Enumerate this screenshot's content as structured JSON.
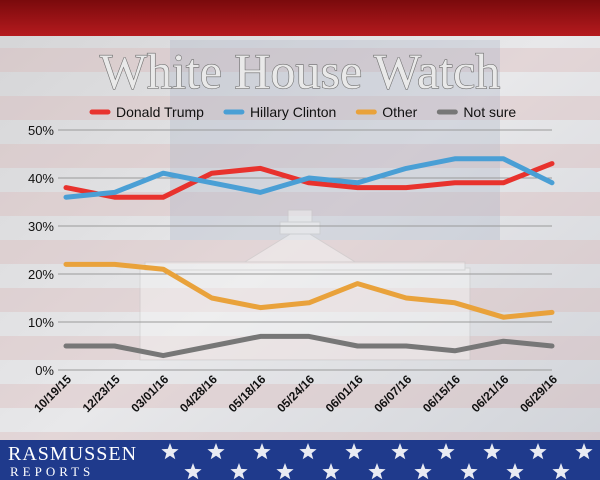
{
  "chart_data": {
    "type": "line",
    "title": "White House Watch",
    "categories": [
      "10/19/15",
      "12/23/15",
      "03/01/16",
      "04/28/16",
      "05/18/16",
      "05/24/16",
      "06/01/16",
      "06/07/16",
      "06/15/16",
      "06/21/16",
      "06/29/16"
    ],
    "yticks": [
      "0%",
      "10%",
      "20%",
      "30%",
      "40%",
      "50%"
    ],
    "ylim": [
      0,
      50
    ],
    "grid": true,
    "legend_position": "top",
    "series": [
      {
        "name": "Donald Trump",
        "color": "#e8322d",
        "values": [
          38,
          36,
          36,
          41,
          42,
          39,
          38,
          38,
          39,
          39,
          43
        ]
      },
      {
        "name": "Hillary Clinton",
        "color": "#4a9fd5",
        "values": [
          36,
          37,
          41,
          39,
          37,
          40,
          39,
          42,
          44,
          44,
          39
        ]
      },
      {
        "name": "Other",
        "color": "#e9a23b",
        "values": [
          22,
          22,
          21,
          15,
          13,
          14,
          18,
          15,
          14,
          11,
          12
        ]
      },
      {
        "name": "Not sure",
        "color": "#777777",
        "values": [
          5,
          5,
          3,
          5,
          7,
          7,
          5,
          5,
          4,
          6,
          5
        ]
      }
    ]
  },
  "brand": {
    "name": "RASMUSSEN",
    "sub": "REPORTS"
  }
}
